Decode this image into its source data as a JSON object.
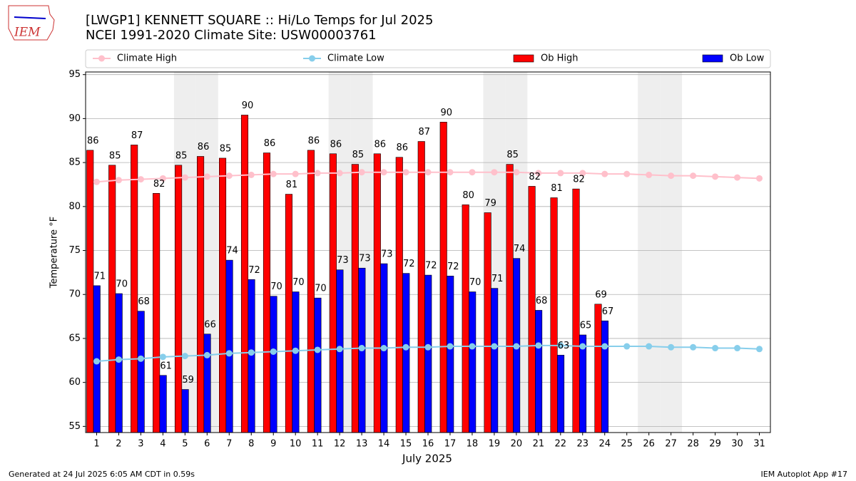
{
  "chart_data": {
    "type": "bar",
    "title": "[LWGP1] KENNETT SQUARE :: Hi/Lo Temps for Jul 2025",
    "subtitle": "NCEI 1991-2020 Climate Site: USW00003761",
    "logo": "IEM",
    "ylabel": "Temperature °F",
    "xlabel": "July 2025",
    "footer_left": "Generated at 24 Jul 2025 6:05 AM CDT in 0.59s",
    "footer_right": "IEM Autoplot App #17",
    "categories": [
      "1",
      "2",
      "3",
      "4",
      "5",
      "6",
      "7",
      "8",
      "9",
      "10",
      "11",
      "12",
      "13",
      "14",
      "15",
      "16",
      "17",
      "18",
      "19",
      "20",
      "21",
      "22",
      "23",
      "24",
      "25",
      "26",
      "27",
      "28",
      "29",
      "30",
      "31"
    ],
    "shaded_categories": [
      "5",
      "6",
      "12",
      "13",
      "19",
      "20",
      "26",
      "27"
    ],
    "ylim": [
      54.3,
      95.3
    ],
    "yticks": [
      55,
      60,
      65,
      70,
      75,
      80,
      85,
      90,
      95
    ],
    "grid": true,
    "series": [
      {
        "name": "Climate High",
        "kind": "line",
        "color": "#ffc0cb",
        "values": [
          82.8,
          83.0,
          83.1,
          83.2,
          83.3,
          83.4,
          83.5,
          83.6,
          83.7,
          83.7,
          83.8,
          83.8,
          83.9,
          83.9,
          83.9,
          83.9,
          83.9,
          83.9,
          83.9,
          83.9,
          83.8,
          83.8,
          83.8,
          83.7,
          83.7,
          83.6,
          83.5,
          83.5,
          83.4,
          83.3,
          83.2
        ]
      },
      {
        "name": "Climate Low",
        "kind": "line",
        "color": "#87ceeb",
        "values": [
          62.4,
          62.6,
          62.7,
          62.9,
          63.0,
          63.1,
          63.3,
          63.4,
          63.5,
          63.6,
          63.7,
          63.8,
          63.9,
          63.9,
          64.0,
          64.0,
          64.1,
          64.1,
          64.1,
          64.1,
          64.2,
          64.2,
          64.1,
          64.1,
          64.1,
          64.1,
          64.0,
          64.0,
          63.9,
          63.9,
          63.8
        ]
      },
      {
        "name": "Ob High",
        "kind": "bar",
        "color": "#ff0000",
        "values": [
          86.4,
          84.7,
          87.0,
          81.5,
          84.7,
          85.7,
          85.5,
          90.4,
          86.1,
          81.4,
          86.4,
          86.0,
          84.8,
          86.0,
          85.6,
          87.4,
          89.6,
          80.2,
          79.3,
          84.8,
          82.3,
          81.0,
          82.0,
          68.9,
          null,
          null,
          null,
          null,
          null,
          null,
          null
        ],
        "value_labels": [
          "86",
          "85",
          "87",
          "82",
          "85",
          "86",
          "85",
          "90",
          "86",
          "81",
          "86",
          "86",
          "85",
          "86",
          "86",
          "87",
          "90",
          "80",
          "79",
          "85",
          "82",
          "81",
          "82",
          "69",
          null,
          null,
          null,
          null,
          null,
          null,
          null
        ]
      },
      {
        "name": "Ob Low",
        "kind": "bar",
        "color": "#0000ff",
        "values": [
          71.0,
          70.1,
          68.1,
          60.8,
          59.2,
          65.5,
          73.9,
          71.7,
          69.8,
          70.3,
          69.6,
          72.8,
          73.0,
          73.5,
          72.4,
          72.2,
          72.1,
          70.3,
          70.7,
          74.1,
          68.2,
          63.1,
          65.4,
          67.0,
          null,
          null,
          null,
          null,
          null,
          null,
          null
        ],
        "value_labels": [
          "71",
          "70",
          "68",
          "61",
          "59",
          "66",
          "74",
          "72",
          "70",
          "70",
          "70",
          "73",
          "73",
          "73",
          "72",
          "72",
          "72",
          "70",
          "71",
          "74",
          "68",
          "63",
          "65",
          "67",
          null,
          null,
          null,
          null,
          null,
          null,
          null
        ]
      }
    ]
  }
}
